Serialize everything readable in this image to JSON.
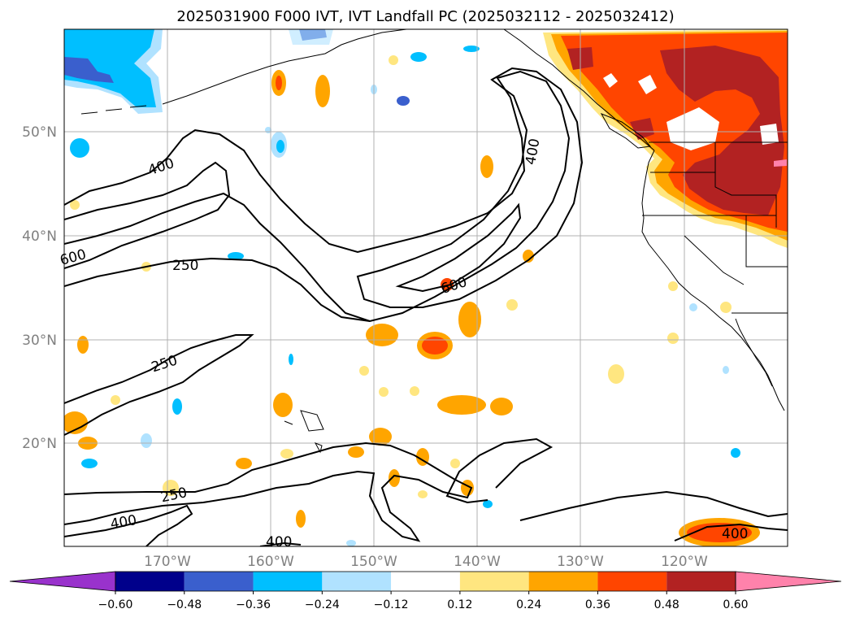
{
  "title": "2025031900 F000 IVT, IVT Landfall PC (2025032112 - 2025032412)",
  "axes": {
    "lat_labels": [
      "50°N",
      "40°N",
      "30°N",
      "20°N"
    ],
    "lon_labels": [
      "170°W",
      "160°W",
      "150°W",
      "140°W",
      "130°W",
      "120°W"
    ],
    "label_color": "#808080"
  },
  "contour_labels": [
    "400",
    "400",
    "600",
    "250",
    "250",
    "250",
    "600",
    "400",
    "400",
    "400"
  ],
  "colorbar": {
    "ticks": [
      "−0.60",
      "−0.48",
      "−0.36",
      "−0.24",
      "−0.12",
      "0.12",
      "0.24",
      "0.36",
      "0.48",
      "0.60"
    ],
    "colors": [
      "#9932cc",
      "#00008b",
      "#3a5fcd",
      "#00bfff",
      "#b0e2ff",
      "#ffffff",
      "#ffe680",
      "#ffa500",
      "#ff4500",
      "#b22222",
      "#ff82ab"
    ]
  }
}
